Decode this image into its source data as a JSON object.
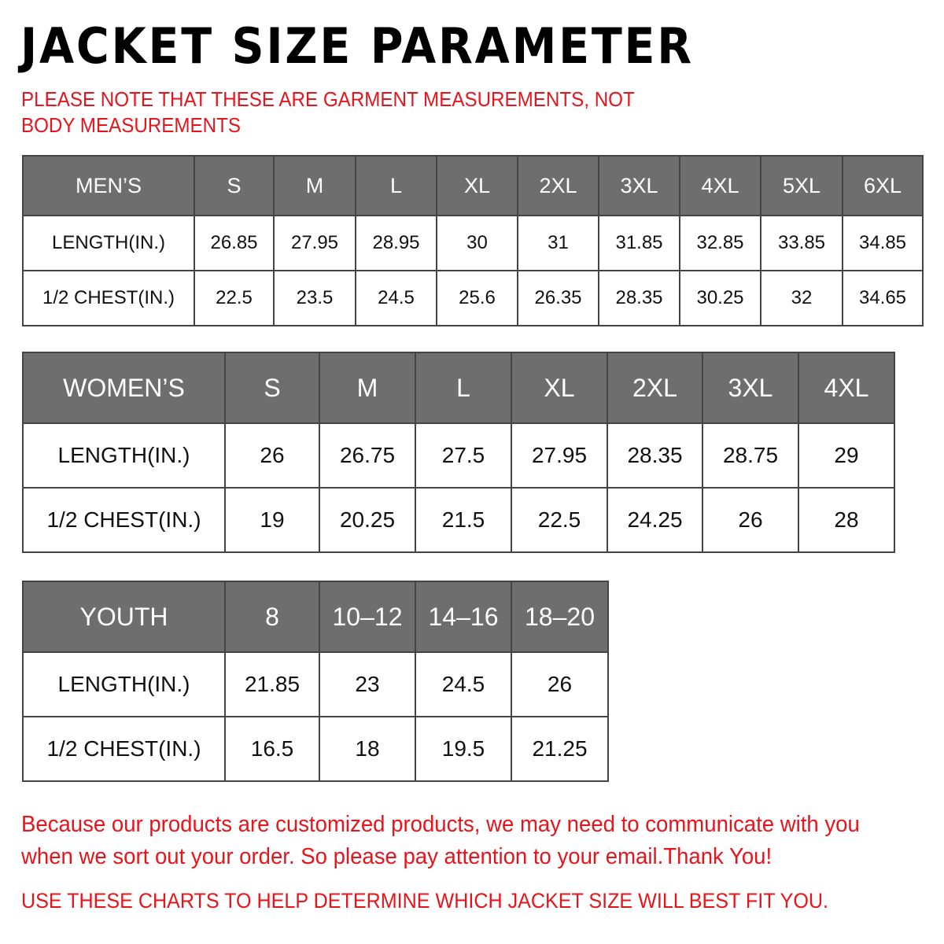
{
  "title": "JACKET SIZE PARAMETER",
  "note": "PLEASE NOTE THAT THESE ARE GARMENT MEASUREMENTS, NOT BODY MEASUREMENTS",
  "colors": {
    "header_bg": "#6e6e6e",
    "accent_red": "#e8141b"
  },
  "tables": {
    "men": {
      "header": [
        "MEN’S",
        "S",
        "M",
        "L",
        "XL",
        "2XL",
        "3XL",
        "4XL",
        "5XL",
        "6XL"
      ],
      "rows": [
        [
          "LENGTH(IN.)",
          "26.85",
          "27.95",
          "28.95",
          "30",
          "31",
          "31.85",
          "32.85",
          "33.85",
          "34.85"
        ],
        [
          "1/2 CHEST(IN.)",
          "22.5",
          "23.5",
          "24.5",
          "25.6",
          "26.35",
          "28.35",
          "30.25",
          "32",
          "34.65"
        ]
      ]
    },
    "women": {
      "header": [
        "WOMEN’S",
        "S",
        "M",
        "L",
        "XL",
        "2XL",
        "3XL",
        "4XL"
      ],
      "rows": [
        [
          "LENGTH(IN.)",
          "26",
          "26.75",
          "27.5",
          "27.95",
          "28.35",
          "28.75",
          "29"
        ],
        [
          "1/2 CHEST(IN.)",
          "19",
          "20.25",
          "21.5",
          "22.5",
          "24.25",
          "26",
          "28"
        ]
      ]
    },
    "youth": {
      "header": [
        "YOUTH",
        "8",
        "10–12",
        "14–16",
        "18–20"
      ],
      "rows": [
        [
          "LENGTH(IN.)",
          "21.85",
          "23",
          "24.5",
          "26"
        ],
        [
          "1/2 CHEST(IN.)",
          "16.5",
          "18",
          "19.5",
          "21.25"
        ]
      ]
    }
  },
  "footer": {
    "message_line1": "Because our products are customized products, we may need to communicate with you",
    "message_line2": "when we sort out your order. So please pay attention to your email.Thank You!",
    "instruction": "USE THESE CHARTS TO HELP DETERMINE WHICH JACKET SIZE WILL BEST FIT YOU."
  }
}
